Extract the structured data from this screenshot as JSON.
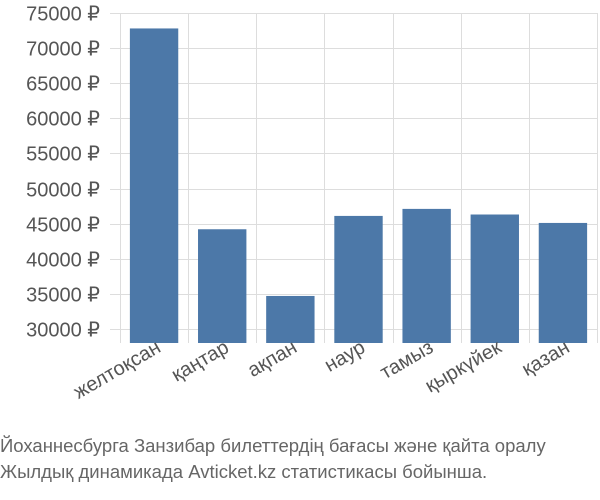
{
  "chart_data": {
    "type": "bar",
    "categories": [
      "желтоқсан",
      "қаңтар",
      "ақпан",
      "наур",
      "тамыз",
      "қыркүйек",
      "қазан"
    ],
    "values": [
      72800,
      44200,
      34700,
      46100,
      47100,
      46300,
      45100
    ],
    "ylim": [
      28000,
      75000
    ],
    "yticks": [
      30000,
      35000,
      40000,
      45000,
      50000,
      55000,
      60000,
      65000,
      70000,
      75000
    ],
    "ytick_labels": [
      "30000 ₽",
      "35000 ₽",
      "40000 ₽",
      "45000 ₽",
      "50000 ₽",
      "55000 ₽",
      "60000 ₽",
      "65000 ₽",
      "70000 ₽",
      "75000 ₽"
    ],
    "grid": true,
    "bar_color": "#4c78a8",
    "grid_color": "#dddddd"
  },
  "caption": {
    "line1": "Йоханнесбурга Занзибар билеттердің бағасы және қайта оралу",
    "line2": "Жылдық динамикада Avticket.kz статистикасы бойынша."
  }
}
